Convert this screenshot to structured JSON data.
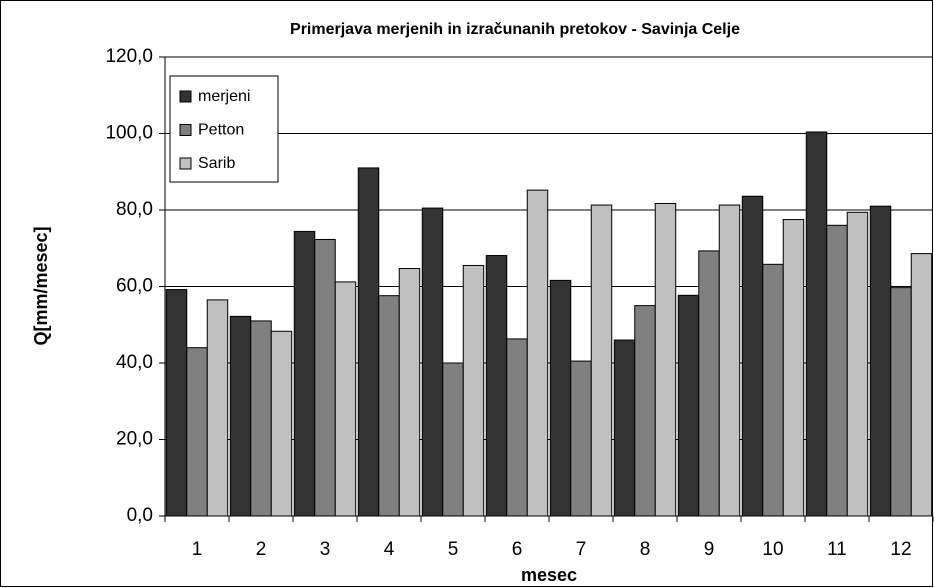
{
  "chart_data": {
    "type": "bar",
    "title": "Primerjava merjenih in izračunanih pretokov - Savinja Celje",
    "x_label": "mesec",
    "y_label": "Q[mm/mesec]",
    "categories": [
      "1",
      "2",
      "3",
      "4",
      "5",
      "6",
      "7",
      "8",
      "9",
      "10",
      "11",
      "12"
    ],
    "series": [
      {
        "name": "merjeni",
        "color": "#333333",
        "values": [
          59.2,
          52.2,
          74.4,
          91.0,
          80.5,
          68.1,
          61.6,
          46.0,
          57.7,
          83.6,
          100.4,
          81.0
        ]
      },
      {
        "name": "Petton",
        "color": "#808080",
        "values": [
          44.0,
          51.0,
          72.3,
          57.6,
          40.0,
          46.3,
          40.5,
          55.0,
          69.3,
          65.8,
          76.0,
          59.7
        ]
      },
      {
        "name": "Sarib",
        "color": "#c0c0c0",
        "values": [
          56.5,
          48.3,
          61.2,
          64.7,
          65.5,
          85.2,
          81.3,
          81.7,
          81.3,
          77.5,
          79.4,
          68.6
        ]
      }
    ],
    "ylim": [
      0,
      120
    ],
    "yticks": [
      {
        "value": 0,
        "label": "0,0"
      },
      {
        "value": 20,
        "label": "20,0"
      },
      {
        "value": 40,
        "label": "40,0"
      },
      {
        "value": 60,
        "label": "60,0"
      },
      {
        "value": 80,
        "label": "80,0"
      },
      {
        "value": 100,
        "label": "100,0"
      },
      {
        "value": 120,
        "label": "120,0"
      }
    ],
    "grid": true,
    "legend": "top-left"
  }
}
